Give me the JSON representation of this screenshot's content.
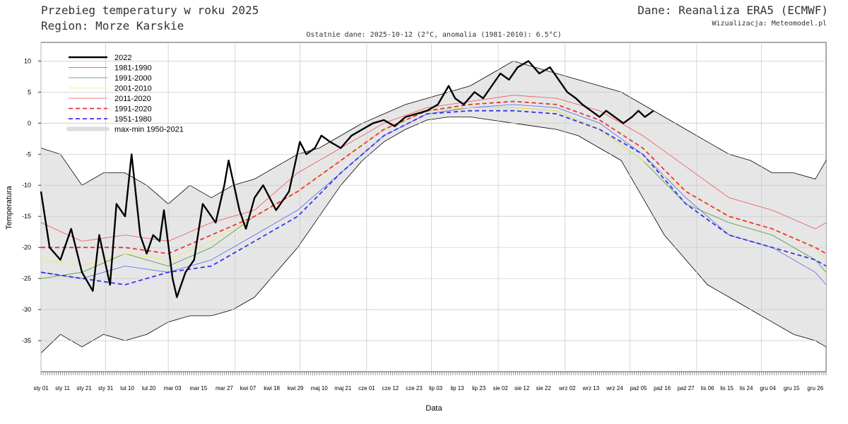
{
  "header": {
    "title_line1": "Przebieg temperatury w roku 2025",
    "title_line2": "Region: Morze Karskie",
    "source": "Dane: Reanaliza ERA5 (ECMWF)",
    "credit": "Wizualizacja: Meteomodel.pl",
    "subtitle": "Ostatnie dane: 2025-10-12 (2°C, anomalia (1981-2010): 6.5°C)"
  },
  "chart_data": {
    "type": "line",
    "xlabel": "Data",
    "ylabel": "Temperatura",
    "ylim": [
      -40,
      13
    ],
    "xlim_days": [
      1,
      365
    ],
    "grid": true,
    "legend_position": "top-left",
    "yticks": [
      10,
      5,
      0,
      -5,
      -10,
      -15,
      -20,
      -25,
      -30,
      -35
    ],
    "xticks": [
      {
        "day": 1,
        "label": "sty 01"
      },
      {
        "day": 11,
        "label": "sty 11"
      },
      {
        "day": 21,
        "label": "sty 21"
      },
      {
        "day": 31,
        "label": "sty 31"
      },
      {
        "day": 41,
        "label": "lut 10"
      },
      {
        "day": 51,
        "label": "lut 20"
      },
      {
        "day": 62,
        "label": "mar 03"
      },
      {
        "day": 74,
        "label": "mar 15"
      },
      {
        "day": 86,
        "label": "mar 27"
      },
      {
        "day": 97,
        "label": "kwi 07"
      },
      {
        "day": 108,
        "label": "kwi 18"
      },
      {
        "day": 119,
        "label": "kwi 29"
      },
      {
        "day": 130,
        "label": "maj 10"
      },
      {
        "day": 141,
        "label": "maj 21"
      },
      {
        "day": 152,
        "label": "cze 01"
      },
      {
        "day": 163,
        "label": "cze 12"
      },
      {
        "day": 174,
        "label": "cze 23"
      },
      {
        "day": 184,
        "label": "lip 03"
      },
      {
        "day": 194,
        "label": "lip 13"
      },
      {
        "day": 204,
        "label": "lip 23"
      },
      {
        "day": 214,
        "label": "sie 02"
      },
      {
        "day": 224,
        "label": "sie 12"
      },
      {
        "day": 234,
        "label": "sie 22"
      },
      {
        "day": 245,
        "label": "wrz 02"
      },
      {
        "day": 256,
        "label": "wrz 13"
      },
      {
        "day": 267,
        "label": "wrz 24"
      },
      {
        "day": 278,
        "label": "paź 05"
      },
      {
        "day": 289,
        "label": "paź 16"
      },
      {
        "day": 300,
        "label": "paź 27"
      },
      {
        "day": 310,
        "label": "lis 06"
      },
      {
        "day": 319,
        "label": "lis 15"
      },
      {
        "day": 328,
        "label": "lis 24"
      },
      {
        "day": 338,
        "label": "gru 04"
      },
      {
        "day": 349,
        "label": "gru 15"
      },
      {
        "day": 360,
        "label": "gru 26"
      }
    ],
    "vgrid_days": [
      1,
      31,
      60,
      91,
      121,
      152,
      182,
      213,
      244,
      274,
      305,
      335
    ],
    "band": {
      "name": "max-min 1950-2021",
      "color": "#e6e6e6",
      "max": [
        [
          1,
          -4
        ],
        [
          10,
          -5
        ],
        [
          20,
          -10
        ],
        [
          30,
          -8
        ],
        [
          40,
          -8
        ],
        [
          50,
          -10
        ],
        [
          60,
          -13
        ],
        [
          70,
          -10
        ],
        [
          80,
          -12
        ],
        [
          90,
          -10
        ],
        [
          100,
          -9
        ],
        [
          110,
          -7
        ],
        [
          120,
          -5
        ],
        [
          130,
          -4
        ],
        [
          140,
          -2
        ],
        [
          150,
          0
        ],
        [
          160,
          1.5
        ],
        [
          170,
          3
        ],
        [
          180,
          4
        ],
        [
          190,
          5
        ],
        [
          200,
          6
        ],
        [
          210,
          8
        ],
        [
          220,
          10
        ],
        [
          230,
          9
        ],
        [
          240,
          8
        ],
        [
          250,
          7
        ],
        [
          260,
          6
        ],
        [
          270,
          5
        ],
        [
          280,
          3
        ],
        [
          290,
          1
        ],
        [
          300,
          -1
        ],
        [
          310,
          -3
        ],
        [
          320,
          -5
        ],
        [
          330,
          -6
        ],
        [
          340,
          -8
        ],
        [
          350,
          -8
        ],
        [
          360,
          -9
        ],
        [
          365,
          -6
        ]
      ],
      "min": [
        [
          1,
          -37
        ],
        [
          10,
          -34
        ],
        [
          20,
          -36
        ],
        [
          30,
          -34
        ],
        [
          40,
          -35
        ],
        [
          50,
          -34
        ],
        [
          60,
          -32
        ],
        [
          70,
          -31
        ],
        [
          80,
          -31
        ],
        [
          90,
          -30
        ],
        [
          100,
          -28
        ],
        [
          110,
          -24
        ],
        [
          120,
          -20
        ],
        [
          130,
          -15
        ],
        [
          140,
          -10
        ],
        [
          150,
          -6
        ],
        [
          160,
          -3
        ],
        [
          170,
          -1
        ],
        [
          180,
          0.5
        ],
        [
          190,
          1
        ],
        [
          200,
          1
        ],
        [
          210,
          0.5
        ],
        [
          220,
          0
        ],
        [
          230,
          -0.5
        ],
        [
          240,
          -1
        ],
        [
          250,
          -2
        ],
        [
          260,
          -4
        ],
        [
          270,
          -6
        ],
        [
          280,
          -12
        ],
        [
          290,
          -18
        ],
        [
          300,
          -22
        ],
        [
          310,
          -26
        ],
        [
          320,
          -28
        ],
        [
          330,
          -30
        ],
        [
          340,
          -32
        ],
        [
          350,
          -34
        ],
        [
          360,
          -35
        ],
        [
          365,
          -36
        ]
      ]
    },
    "series": [
      {
        "name": "1981-1990",
        "color": "#5566ee",
        "width": 0.8,
        "dash": "",
        "points": [
          [
            1,
            -24
          ],
          [
            20,
            -25
          ],
          [
            40,
            -23
          ],
          [
            60,
            -24
          ],
          [
            80,
            -22
          ],
          [
            100,
            -18
          ],
          [
            120,
            -14
          ],
          [
            140,
            -8
          ],
          [
            160,
            -2
          ],
          [
            180,
            1.5
          ],
          [
            200,
            2.5
          ],
          [
            220,
            3
          ],
          [
            240,
            2.5
          ],
          [
            260,
            0
          ],
          [
            280,
            -5
          ],
          [
            300,
            -12
          ],
          [
            320,
            -18
          ],
          [
            340,
            -20
          ],
          [
            360,
            -24
          ],
          [
            365,
            -26
          ]
        ]
      },
      {
        "name": "1991-2000",
        "color": "#449944",
        "width": 0.8,
        "dash": "",
        "points": [
          [
            1,
            -25
          ],
          [
            20,
            -24
          ],
          [
            40,
            -21
          ],
          [
            60,
            -23
          ],
          [
            80,
            -20
          ],
          [
            100,
            -15
          ],
          [
            120,
            -11
          ],
          [
            140,
            -6
          ],
          [
            160,
            -1
          ],
          [
            180,
            2
          ],
          [
            200,
            2.5
          ],
          [
            220,
            2.5
          ],
          [
            240,
            2
          ],
          [
            260,
            -1
          ],
          [
            280,
            -6
          ],
          [
            300,
            -13
          ],
          [
            320,
            -16
          ],
          [
            340,
            -18
          ],
          [
            360,
            -22
          ],
          [
            365,
            -24
          ]
        ]
      },
      {
        "name": "2001-2010",
        "color": "#eeee55",
        "width": 0.8,
        "dash": "",
        "points": [
          [
            1,
            -22
          ],
          [
            20,
            -23
          ],
          [
            40,
            -21
          ],
          [
            60,
            -22
          ],
          [
            80,
            -19
          ],
          [
            100,
            -15
          ],
          [
            120,
            -11
          ],
          [
            140,
            -6
          ],
          [
            160,
            -1
          ],
          [
            180,
            2
          ],
          [
            200,
            2.5
          ],
          [
            220,
            2.5
          ],
          [
            240,
            2
          ],
          [
            260,
            -1
          ],
          [
            280,
            -6
          ],
          [
            300,
            -11
          ],
          [
            320,
            -15
          ],
          [
            340,
            -17
          ],
          [
            360,
            -20
          ],
          [
            365,
            -22
          ]
        ]
      },
      {
        "name": "2011-2020",
        "color": "#ee5555",
        "width": 0.8,
        "dash": "",
        "points": [
          [
            1,
            -16
          ],
          [
            20,
            -19
          ],
          [
            40,
            -18
          ],
          [
            60,
            -19
          ],
          [
            80,
            -16
          ],
          [
            100,
            -14
          ],
          [
            120,
            -8
          ],
          [
            140,
            -4
          ],
          [
            160,
            0
          ],
          [
            180,
            2.5
          ],
          [
            200,
            3.5
          ],
          [
            220,
            4.5
          ],
          [
            240,
            4
          ],
          [
            260,
            2
          ],
          [
            280,
            -2
          ],
          [
            300,
            -7
          ],
          [
            320,
            -12
          ],
          [
            340,
            -14
          ],
          [
            360,
            -17
          ],
          [
            365,
            -16
          ]
        ]
      },
      {
        "name": "1991-2020",
        "color": "#ee3333",
        "width": 1.8,
        "dash": "6,4",
        "points": [
          [
            1,
            -20
          ],
          [
            20,
            -20
          ],
          [
            40,
            -20
          ],
          [
            60,
            -21
          ],
          [
            80,
            -18
          ],
          [
            100,
            -15
          ],
          [
            120,
            -11
          ],
          [
            140,
            -6
          ],
          [
            160,
            -1
          ],
          [
            180,
            2
          ],
          [
            200,
            3
          ],
          [
            220,
            3.5
          ],
          [
            240,
            3
          ],
          [
            260,
            0.5
          ],
          [
            280,
            -4
          ],
          [
            300,
            -11
          ],
          [
            320,
            -15
          ],
          [
            340,
            -17
          ],
          [
            360,
            -20
          ],
          [
            365,
            -21
          ]
        ]
      },
      {
        "name": "1951-1980",
        "color": "#3333ee",
        "width": 1.8,
        "dash": "6,4",
        "points": [
          [
            1,
            -24
          ],
          [
            20,
            -25
          ],
          [
            40,
            -26
          ],
          [
            60,
            -24
          ],
          [
            80,
            -23
          ],
          [
            100,
            -19
          ],
          [
            120,
            -15
          ],
          [
            140,
            -8
          ],
          [
            160,
            -2
          ],
          [
            180,
            1.5
          ],
          [
            200,
            2
          ],
          [
            220,
            2
          ],
          [
            240,
            1.5
          ],
          [
            260,
            -1
          ],
          [
            280,
            -5
          ],
          [
            300,
            -13
          ],
          [
            320,
            -18
          ],
          [
            340,
            -20
          ],
          [
            360,
            -22
          ],
          [
            365,
            -23
          ]
        ]
      },
      {
        "name": "2022",
        "color": "#000000",
        "width": 2.4,
        "dash": "",
        "points": [
          [
            1,
            -11
          ],
          [
            5,
            -20
          ],
          [
            10,
            -22
          ],
          [
            15,
            -17
          ],
          [
            20,
            -24
          ],
          [
            25,
            -27
          ],
          [
            28,
            -18
          ],
          [
            33,
            -26
          ],
          [
            36,
            -13
          ],
          [
            40,
            -15
          ],
          [
            43,
            -5
          ],
          [
            47,
            -18
          ],
          [
            50,
            -21
          ],
          [
            53,
            -18
          ],
          [
            56,
            -19
          ],
          [
            58,
            -14
          ],
          [
            62,
            -25
          ],
          [
            64,
            -28
          ],
          [
            68,
            -24
          ],
          [
            72,
            -22
          ],
          [
            76,
            -13
          ],
          [
            82,
            -16
          ],
          [
            86,
            -10
          ],
          [
            88,
            -6
          ],
          [
            93,
            -14
          ],
          [
            96,
            -17
          ],
          [
            100,
            -12
          ],
          [
            104,
            -10
          ],
          [
            110,
            -14
          ],
          [
            116,
            -11
          ],
          [
            121,
            -3
          ],
          [
            124,
            -5
          ],
          [
            128,
            -4
          ],
          [
            131,
            -2
          ],
          [
            135,
            -3
          ],
          [
            140,
            -4
          ],
          [
            145,
            -2
          ],
          [
            150,
            -1
          ],
          [
            155,
            0
          ],
          [
            160,
            0.5
          ],
          [
            165,
            -0.5
          ],
          [
            170,
            1
          ],
          [
            175,
            1.5
          ],
          [
            180,
            2
          ],
          [
            185,
            3
          ],
          [
            190,
            6
          ],
          [
            193,
            4
          ],
          [
            197,
            3
          ],
          [
            202,
            5
          ],
          [
            206,
            4
          ],
          [
            210,
            6
          ],
          [
            214,
            8
          ],
          [
            218,
            7
          ],
          [
            222,
            9
          ],
          [
            227,
            10
          ],
          [
            232,
            8
          ],
          [
            237,
            9
          ],
          [
            241,
            7
          ],
          [
            245,
            5
          ],
          [
            249,
            4
          ],
          [
            252,
            3
          ],
          [
            256,
            2
          ],
          [
            260,
            1
          ],
          [
            263,
            2
          ],
          [
            267,
            1
          ],
          [
            271,
            0
          ],
          [
            275,
            1
          ],
          [
            278,
            2
          ],
          [
            281,
            1
          ],
          [
            285,
            2
          ]
        ]
      }
    ]
  }
}
